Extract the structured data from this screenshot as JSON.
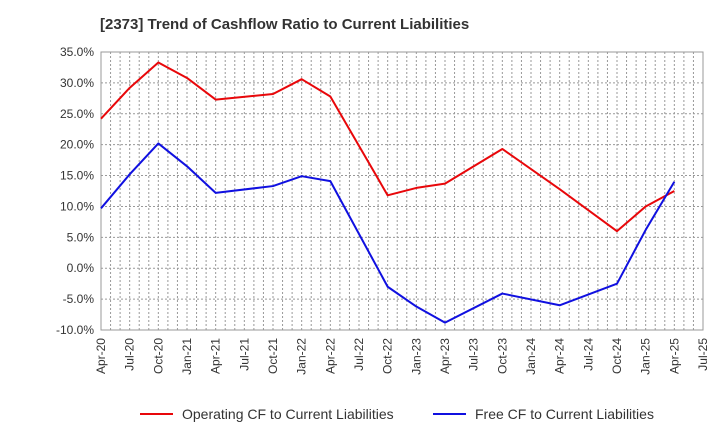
{
  "chart_data": {
    "type": "line",
    "title": "[2373]  Trend of Cashflow Ratio to Current Liabilities",
    "xlabel": "",
    "ylabel": "",
    "ylim": [
      -10,
      35
    ],
    "y_ticks": [
      "35.0%",
      "30.0%",
      "25.0%",
      "20.0%",
      "15.0%",
      "10.0%",
      "5.0%",
      "0.0%",
      "-5.0%",
      "-10.0%"
    ],
    "x_ticks": [
      "Apr-20",
      "Jul-20",
      "Oct-20",
      "Jan-21",
      "Apr-21",
      "Jul-21",
      "Oct-21",
      "Jan-22",
      "Apr-22",
      "Jul-22",
      "Oct-22",
      "Jan-23",
      "Apr-23",
      "Jul-23",
      "Oct-23",
      "Jan-24",
      "Apr-24",
      "Jul-24",
      "Oct-24",
      "Jan-25",
      "Apr-25",
      "Jul-25"
    ],
    "grid": true,
    "legend_position": "bottom",
    "series": [
      {
        "name": "Operating CF to Current Liabilities",
        "color": "#e8070a",
        "points": [
          {
            "x": "Apr-20",
            "y": 24.2
          },
          {
            "x": "Jul-20",
            "y": 29.2
          },
          {
            "x": "Oct-20",
            "y": 33.3
          },
          {
            "x": "Jan-21",
            "y": 30.8
          },
          {
            "x": "Apr-21",
            "y": 27.3
          },
          {
            "x": "Oct-21",
            "y": 28.2
          },
          {
            "x": "Jan-22",
            "y": 30.6
          },
          {
            "x": "Apr-22",
            "y": 27.8
          },
          {
            "x": "Oct-22",
            "y": 11.8
          },
          {
            "x": "Jan-23",
            "y": 13.0
          },
          {
            "x": "Apr-23",
            "y": 13.7
          },
          {
            "x": "Oct-23",
            "y": 19.3
          },
          {
            "x": "Apr-24",
            "y": 12.8
          },
          {
            "x": "Oct-24",
            "y": 6.0
          },
          {
            "x": "Jan-25",
            "y": 10.0
          },
          {
            "x": "Apr-25",
            "y": 12.5
          }
        ]
      },
      {
        "name": "Free CF to Current Liabilities",
        "color": "#1010e0",
        "points": [
          {
            "x": "Apr-20",
            "y": 9.7
          },
          {
            "x": "Jul-20",
            "y": 15.2
          },
          {
            "x": "Oct-20",
            "y": 20.2
          },
          {
            "x": "Jan-21",
            "y": 16.5
          },
          {
            "x": "Apr-21",
            "y": 12.2
          },
          {
            "x": "Oct-21",
            "y": 13.3
          },
          {
            "x": "Jan-22",
            "y": 14.9
          },
          {
            "x": "Apr-22",
            "y": 14.1
          },
          {
            "x": "Oct-22",
            "y": -3.0
          },
          {
            "x": "Jan-23",
            "y": -6.2
          },
          {
            "x": "Apr-23",
            "y": -8.8
          },
          {
            "x": "Oct-23",
            "y": -4.1
          },
          {
            "x": "Apr-24",
            "y": -6.0
          },
          {
            "x": "Oct-24",
            "y": -2.5
          },
          {
            "x": "Jan-25",
            "y": 6.2
          },
          {
            "x": "Apr-25",
            "y": 14.0
          }
        ]
      }
    ]
  }
}
